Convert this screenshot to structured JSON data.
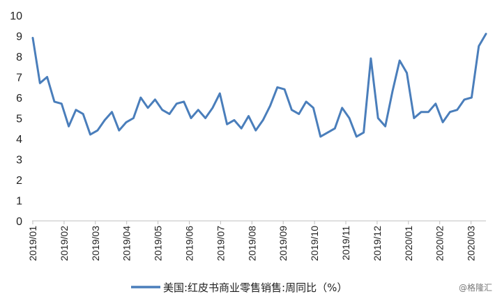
{
  "chart_data": {
    "type": "line",
    "title": "",
    "xlabel": "",
    "ylabel": "",
    "ylim": [
      0,
      10
    ],
    "yticks": [
      0,
      1,
      2,
      3,
      4,
      5,
      6,
      7,
      8,
      9,
      10
    ],
    "x_tick_labels": [
      "2019/01",
      "2019/02",
      "2019/03",
      "2019/04",
      "2019/05",
      "2019/06",
      "2019/07",
      "2019/08",
      "2019/09",
      "2019/10",
      "2019/11",
      "2019/12",
      "2020/01",
      "2020/02",
      "2020/03"
    ],
    "grid": false,
    "legend_position": "bottom",
    "series": [
      {
        "name": "美国:红皮书商业零售销售:周同比（%）",
        "color": "#4a7ebb",
        "values": [
          8.9,
          6.7,
          7.0,
          5.8,
          5.7,
          4.6,
          5.4,
          5.2,
          4.2,
          4.4,
          4.9,
          5.3,
          4.4,
          4.8,
          5.0,
          6.0,
          5.5,
          5.9,
          5.4,
          5.2,
          5.7,
          5.8,
          5.0,
          5.4,
          5.0,
          5.5,
          6.2,
          4.7,
          4.9,
          4.5,
          5.1,
          4.4,
          4.9,
          5.6,
          6.5,
          6.4,
          5.4,
          5.2,
          5.8,
          5.5,
          4.1,
          4.3,
          4.5,
          5.5,
          5.0,
          4.1,
          4.3,
          7.9,
          5.0,
          4.6,
          6.3,
          7.8,
          7.2,
          5.0,
          5.3,
          5.3,
          5.7,
          4.8,
          5.3,
          5.4,
          5.9,
          6.0,
          8.5,
          9.1
        ]
      }
    ]
  },
  "watermark": "@格隆汇"
}
